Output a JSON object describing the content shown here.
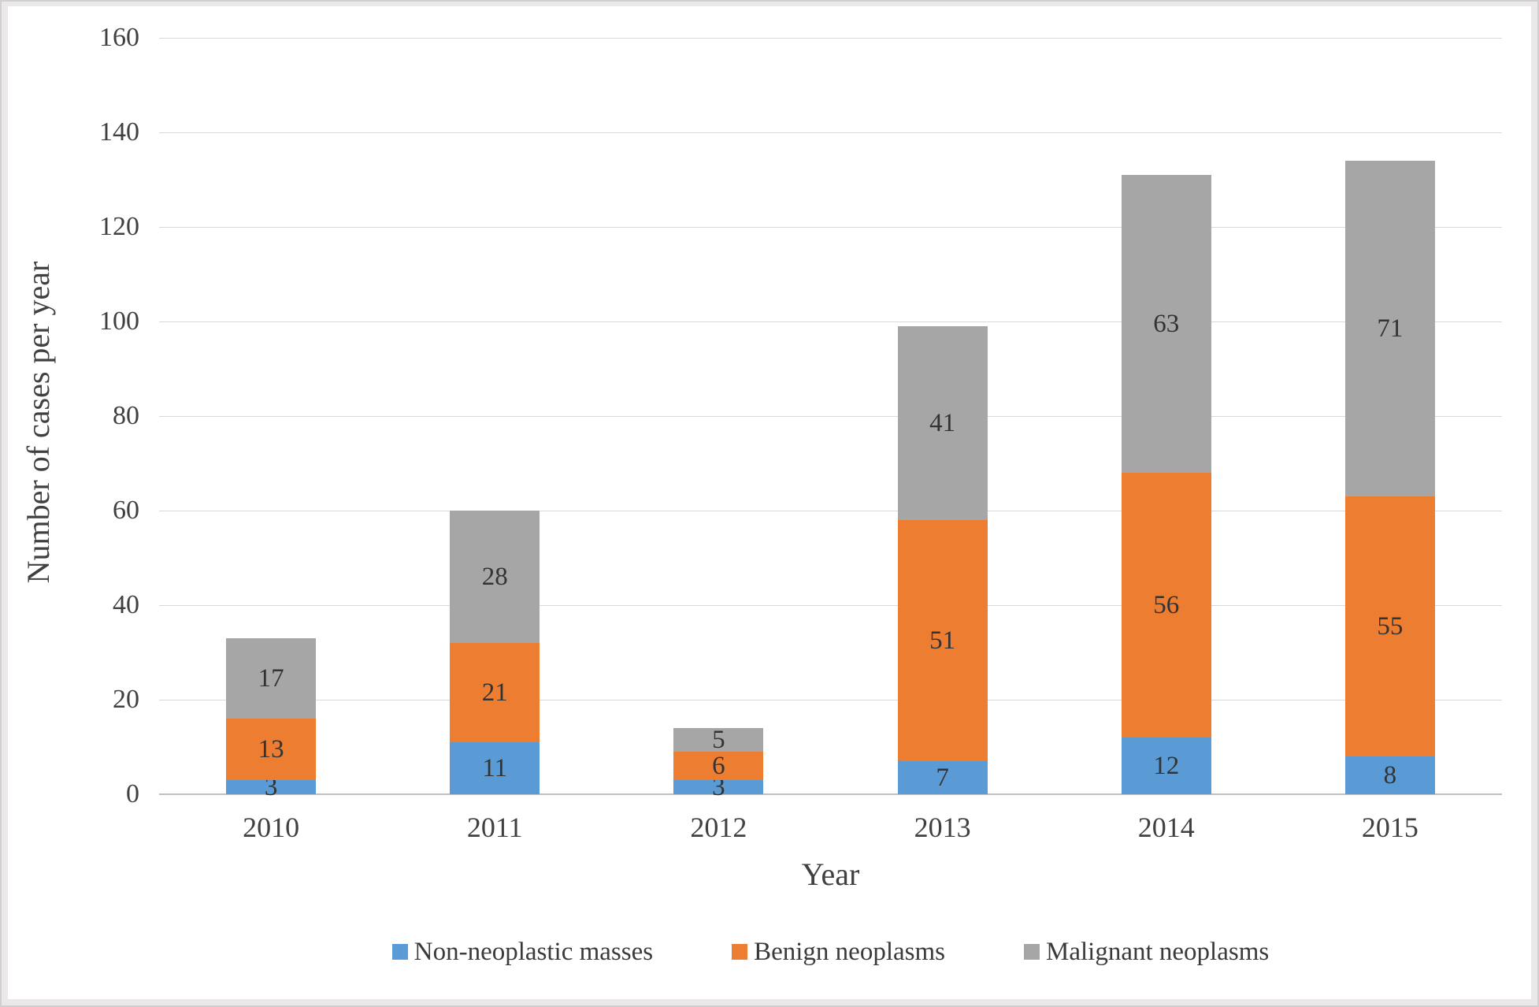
{
  "figure": {
    "frame_color": "#d2cfd0",
    "background": "#ffffff"
  },
  "chart_data": {
    "type": "bar",
    "stacked": true,
    "title": "",
    "xlabel": "Year",
    "ylabel": "Number of cases per year",
    "categories": [
      "2010",
      "2011",
      "2012",
      "2013",
      "2014",
      "2015"
    ],
    "series": [
      {
        "name": "Non-neoplastic masses",
        "color": "#5B9BD5",
        "values": [
          3,
          11,
          3,
          7,
          12,
          8
        ]
      },
      {
        "name": "Benign neoplasms",
        "color": "#ED7D31",
        "values": [
          13,
          21,
          6,
          51,
          56,
          55
        ]
      },
      {
        "name": "Malignant neoplasms",
        "color": "#A6A6A6",
        "values": [
          17,
          28,
          5,
          41,
          63,
          71
        ]
      }
    ],
    "totals": [
      33,
      60,
      14,
      99,
      131,
      134
    ],
    "ylim": [
      0,
      160
    ],
    "yticks": [
      0,
      20,
      40,
      60,
      80,
      100,
      120,
      140,
      160
    ],
    "grid": true,
    "legend_position": "bottom",
    "colors": {
      "gridline": "#d9d9d9",
      "axis_line": "#c0bfbf",
      "tick_label": "#404040",
      "axis_title": "#404040",
      "data_label": "#333333",
      "legend_label": "#3a3a3a"
    }
  }
}
